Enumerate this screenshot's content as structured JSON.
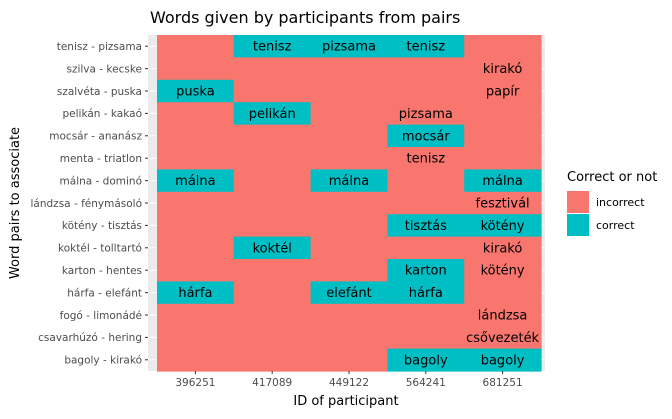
{
  "chart_data": {
    "type": "heatmap",
    "title": "Words given by participants from pairs",
    "xlabel": "ID of participant",
    "ylabel": "Word pairs to associate",
    "x": [
      "396251",
      "417089",
      "449122",
      "564241",
      "681251"
    ],
    "y": [
      "tenisz - pizsama",
      "szilva - kecske",
      "szalvéta - puska",
      "pelikán - kakaó",
      "mocsár - ananász",
      "menta - triatlon",
      "málna - dominó",
      "lándzsa - fénymásoló",
      "kötény - tisztás",
      "koktél - tolltartó",
      "karton - hentes",
      "hárfa - elefánt",
      "fogó - limonádé",
      "csavarhúzó - hering",
      "bagoly - kirakó"
    ],
    "cells": [
      [
        {
          "c": "incorrect",
          "w": ""
        },
        {
          "c": "correct",
          "w": "tenisz"
        },
        {
          "c": "correct",
          "w": "pizsama"
        },
        {
          "c": "correct",
          "w": "tenisz"
        },
        {
          "c": "incorrect",
          "w": ""
        }
      ],
      [
        {
          "c": "incorrect",
          "w": ""
        },
        {
          "c": "incorrect",
          "w": ""
        },
        {
          "c": "incorrect",
          "w": ""
        },
        {
          "c": "incorrect",
          "w": ""
        },
        {
          "c": "incorrect",
          "w": "kirakó"
        }
      ],
      [
        {
          "c": "correct",
          "w": "puska"
        },
        {
          "c": "incorrect",
          "w": ""
        },
        {
          "c": "incorrect",
          "w": ""
        },
        {
          "c": "incorrect",
          "w": ""
        },
        {
          "c": "incorrect",
          "w": "papír"
        }
      ],
      [
        {
          "c": "incorrect",
          "w": ""
        },
        {
          "c": "correct",
          "w": "pelikán"
        },
        {
          "c": "incorrect",
          "w": ""
        },
        {
          "c": "incorrect",
          "w": "pizsama"
        },
        {
          "c": "incorrect",
          "w": ""
        }
      ],
      [
        {
          "c": "incorrect",
          "w": ""
        },
        {
          "c": "incorrect",
          "w": ""
        },
        {
          "c": "incorrect",
          "w": ""
        },
        {
          "c": "correct",
          "w": "mocsár"
        },
        {
          "c": "incorrect",
          "w": ""
        }
      ],
      [
        {
          "c": "incorrect",
          "w": ""
        },
        {
          "c": "incorrect",
          "w": ""
        },
        {
          "c": "incorrect",
          "w": ""
        },
        {
          "c": "incorrect",
          "w": "tenisz"
        },
        {
          "c": "incorrect",
          "w": ""
        }
      ],
      [
        {
          "c": "correct",
          "w": "málna"
        },
        {
          "c": "incorrect",
          "w": ""
        },
        {
          "c": "correct",
          "w": "málna"
        },
        {
          "c": "incorrect",
          "w": ""
        },
        {
          "c": "correct",
          "w": "málna"
        }
      ],
      [
        {
          "c": "incorrect",
          "w": ""
        },
        {
          "c": "incorrect",
          "w": ""
        },
        {
          "c": "incorrect",
          "w": ""
        },
        {
          "c": "incorrect",
          "w": ""
        },
        {
          "c": "incorrect",
          "w": "fesztivál"
        }
      ],
      [
        {
          "c": "incorrect",
          "w": ""
        },
        {
          "c": "incorrect",
          "w": ""
        },
        {
          "c": "incorrect",
          "w": ""
        },
        {
          "c": "correct",
          "w": "tisztás"
        },
        {
          "c": "correct",
          "w": "kötény"
        }
      ],
      [
        {
          "c": "incorrect",
          "w": ""
        },
        {
          "c": "correct",
          "w": "koktél"
        },
        {
          "c": "incorrect",
          "w": ""
        },
        {
          "c": "incorrect",
          "w": ""
        },
        {
          "c": "incorrect",
          "w": "kirakó"
        }
      ],
      [
        {
          "c": "incorrect",
          "w": ""
        },
        {
          "c": "incorrect",
          "w": ""
        },
        {
          "c": "incorrect",
          "w": ""
        },
        {
          "c": "correct",
          "w": "karton"
        },
        {
          "c": "incorrect",
          "w": "kötény"
        }
      ],
      [
        {
          "c": "correct",
          "w": "hárfa"
        },
        {
          "c": "incorrect",
          "w": ""
        },
        {
          "c": "correct",
          "w": "elefánt"
        },
        {
          "c": "correct",
          "w": "hárfa"
        },
        {
          "c": "incorrect",
          "w": ""
        }
      ],
      [
        {
          "c": "incorrect",
          "w": ""
        },
        {
          "c": "incorrect",
          "w": ""
        },
        {
          "c": "incorrect",
          "w": ""
        },
        {
          "c": "incorrect",
          "w": ""
        },
        {
          "c": "incorrect",
          "w": "lándzsa"
        }
      ],
      [
        {
          "c": "incorrect",
          "w": ""
        },
        {
          "c": "incorrect",
          "w": ""
        },
        {
          "c": "incorrect",
          "w": ""
        },
        {
          "c": "incorrect",
          "w": ""
        },
        {
          "c": "incorrect",
          "w": "csővezeték"
        }
      ],
      [
        {
          "c": "incorrect",
          "w": ""
        },
        {
          "c": "incorrect",
          "w": ""
        },
        {
          "c": "incorrect",
          "w": ""
        },
        {
          "c": "correct",
          "w": "bagoly"
        },
        {
          "c": "correct",
          "w": "bagoly"
        }
      ]
    ],
    "legend": {
      "title": "Correct or not",
      "position": "right",
      "entries": [
        {
          "label": "incorrect",
          "key": "incorrect",
          "color": "#F8766D"
        },
        {
          "label": "correct",
          "key": "correct",
          "color": "#00BFC4"
        }
      ]
    },
    "panel_background": "#EBEBEB",
    "grid": true
  }
}
